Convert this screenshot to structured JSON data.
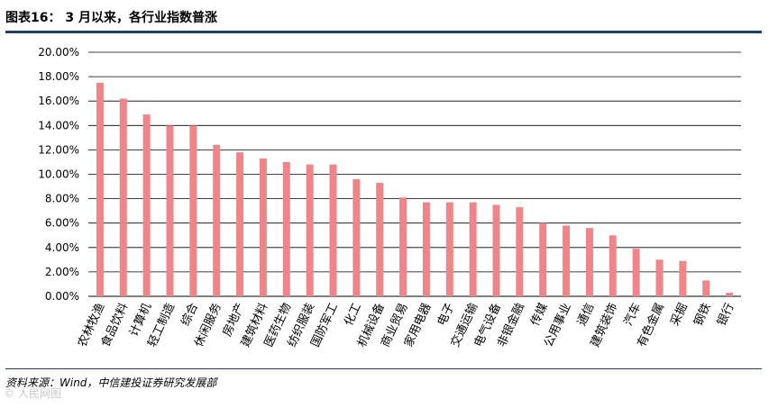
{
  "header": {
    "title": "图表16：  3 月以来，各行业指数普涨"
  },
  "footer": {
    "source": "资料来源：Wind，中信建投证券研究发展部"
  },
  "watermark": {
    "text": "© 人民网图"
  },
  "colors": {
    "bar": "#f08589",
    "grid": "#000000",
    "rule": "#1f3f66"
  },
  "chart_data": {
    "type": "bar",
    "title": "",
    "xlabel": "",
    "ylabel": "",
    "ylim": [
      0,
      20
    ],
    "yticks": [
      "0.00%",
      "2.00%",
      "4.00%",
      "6.00%",
      "8.00%",
      "10.00%",
      "12.00%",
      "14.00%",
      "16.00%",
      "18.00%",
      "20.00%"
    ],
    "grid": true,
    "legend": "none",
    "categories": [
      "农林牧渔",
      "食品饮料",
      "计算机",
      "轻工制造",
      "综合",
      "休闲服务",
      "房地产",
      "建筑材料",
      "医药生物",
      "纺织服装",
      "国防军工",
      "化工",
      "机械设备",
      "商业贸易",
      "家用电器",
      "电子",
      "交通运输",
      "电气设备",
      "非银金融",
      "传媒",
      "公用事业",
      "通信",
      "建筑装饰",
      "汽车",
      "有色金属",
      "采掘",
      "钢铁",
      "银行"
    ],
    "values": [
      17.5,
      16.2,
      14.9,
      14.0,
      14.0,
      12.4,
      11.8,
      11.3,
      11.0,
      10.8,
      10.8,
      9.6,
      9.3,
      8.1,
      7.7,
      7.7,
      7.7,
      7.5,
      7.3,
      6.0,
      5.8,
      5.6,
      5.0,
      3.9,
      3.0,
      2.9,
      1.3,
      0.3
    ]
  }
}
